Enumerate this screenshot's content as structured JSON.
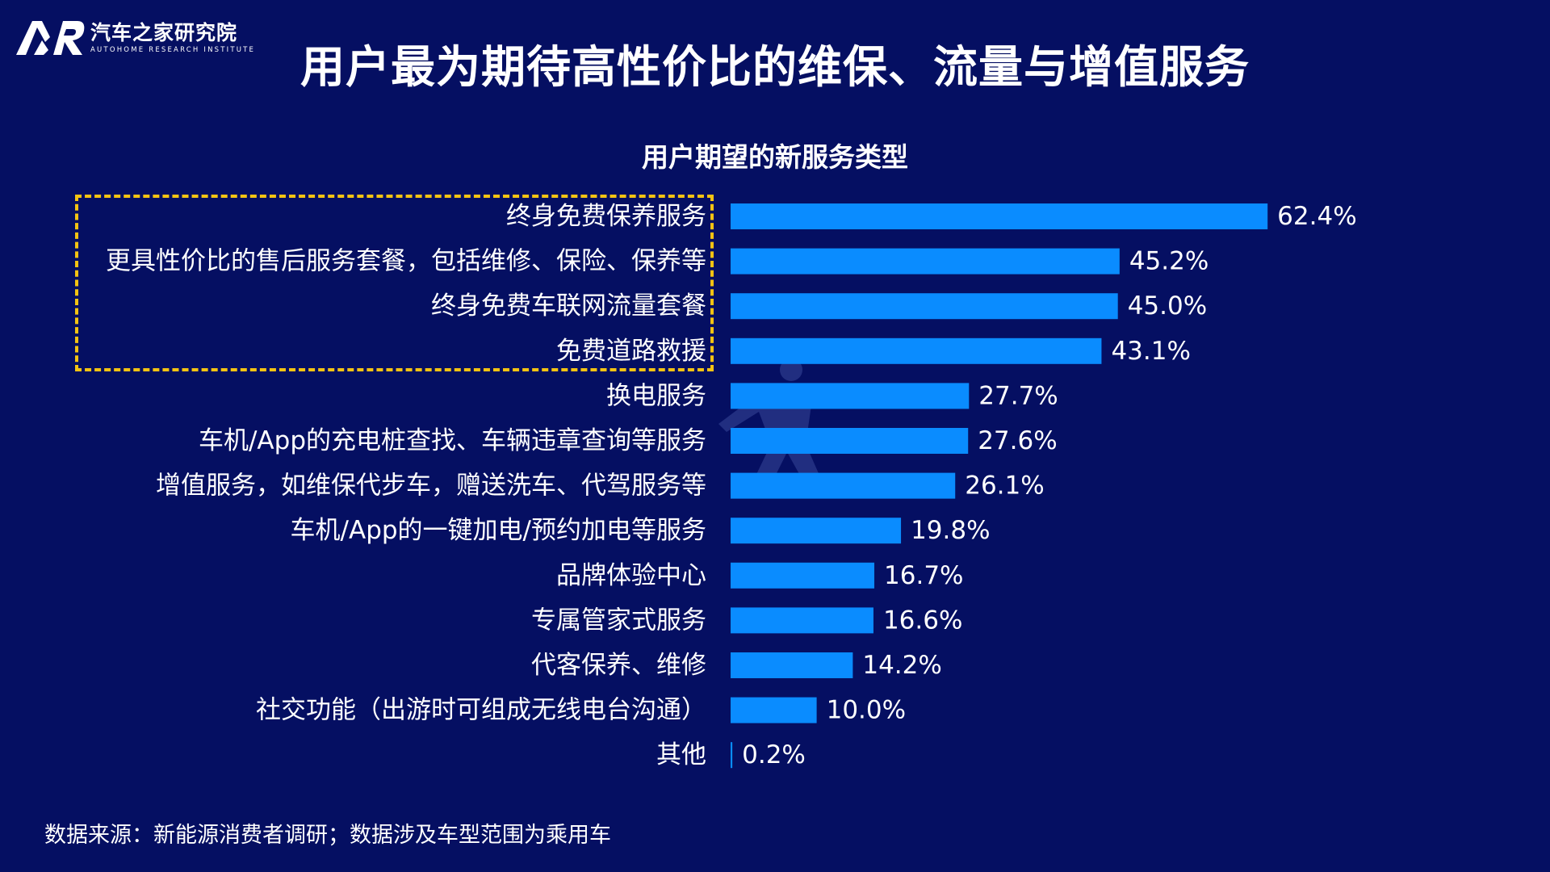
{
  "header": {
    "org_cn": "汽车之家研究院",
    "org_en": "AUTOHOME RESEARCH INSTITUTE",
    "title": "用户最为期待高性价比的维保、流量与增值服务"
  },
  "footer": {
    "source": "数据来源：新能源消费者调研；数据涉及车型范围为乘用车"
  },
  "colors": {
    "background": "#050f62",
    "bar": "#0a8cff",
    "highlight": "#f4c313",
    "text": "#ffffff"
  },
  "chart_data": {
    "type": "bar",
    "orientation": "horizontal",
    "title": "用户期望的新服务类型",
    "categories": [
      "终身免费保养服务",
      "更具性价比的售后服务套餐，包括维修、保险、保养等",
      "终身免费车联网流量套餐",
      "免费道路救援",
      "换电服务",
      "车机/App的充电桩查找、车辆违章查询等服务",
      "增值服务，如维保代步车，赠送洗车、代驾服务等",
      "车机/App的一键加电/预约加电等服务",
      "品牌体验中心",
      "专属管家式服务",
      "代客保养、维修",
      "社交功能（出游时可组成无线电台沟通）",
      "其他"
    ],
    "values": [
      62.4,
      45.2,
      45.0,
      43.1,
      27.7,
      27.6,
      26.1,
      19.8,
      16.7,
      16.6,
      14.2,
      10.0,
      0.2
    ],
    "value_labels": [
      "62.4%",
      "45.2%",
      "45.0%",
      "43.1%",
      "27.7%",
      "27.6%",
      "26.1%",
      "19.8%",
      "16.7%",
      "16.6%",
      "14.2%",
      "10.0%",
      "0.2%"
    ],
    "unit": "%",
    "xlim": [
      0,
      70
    ],
    "highlighted_categories": [
      0,
      1,
      2,
      3
    ]
  }
}
